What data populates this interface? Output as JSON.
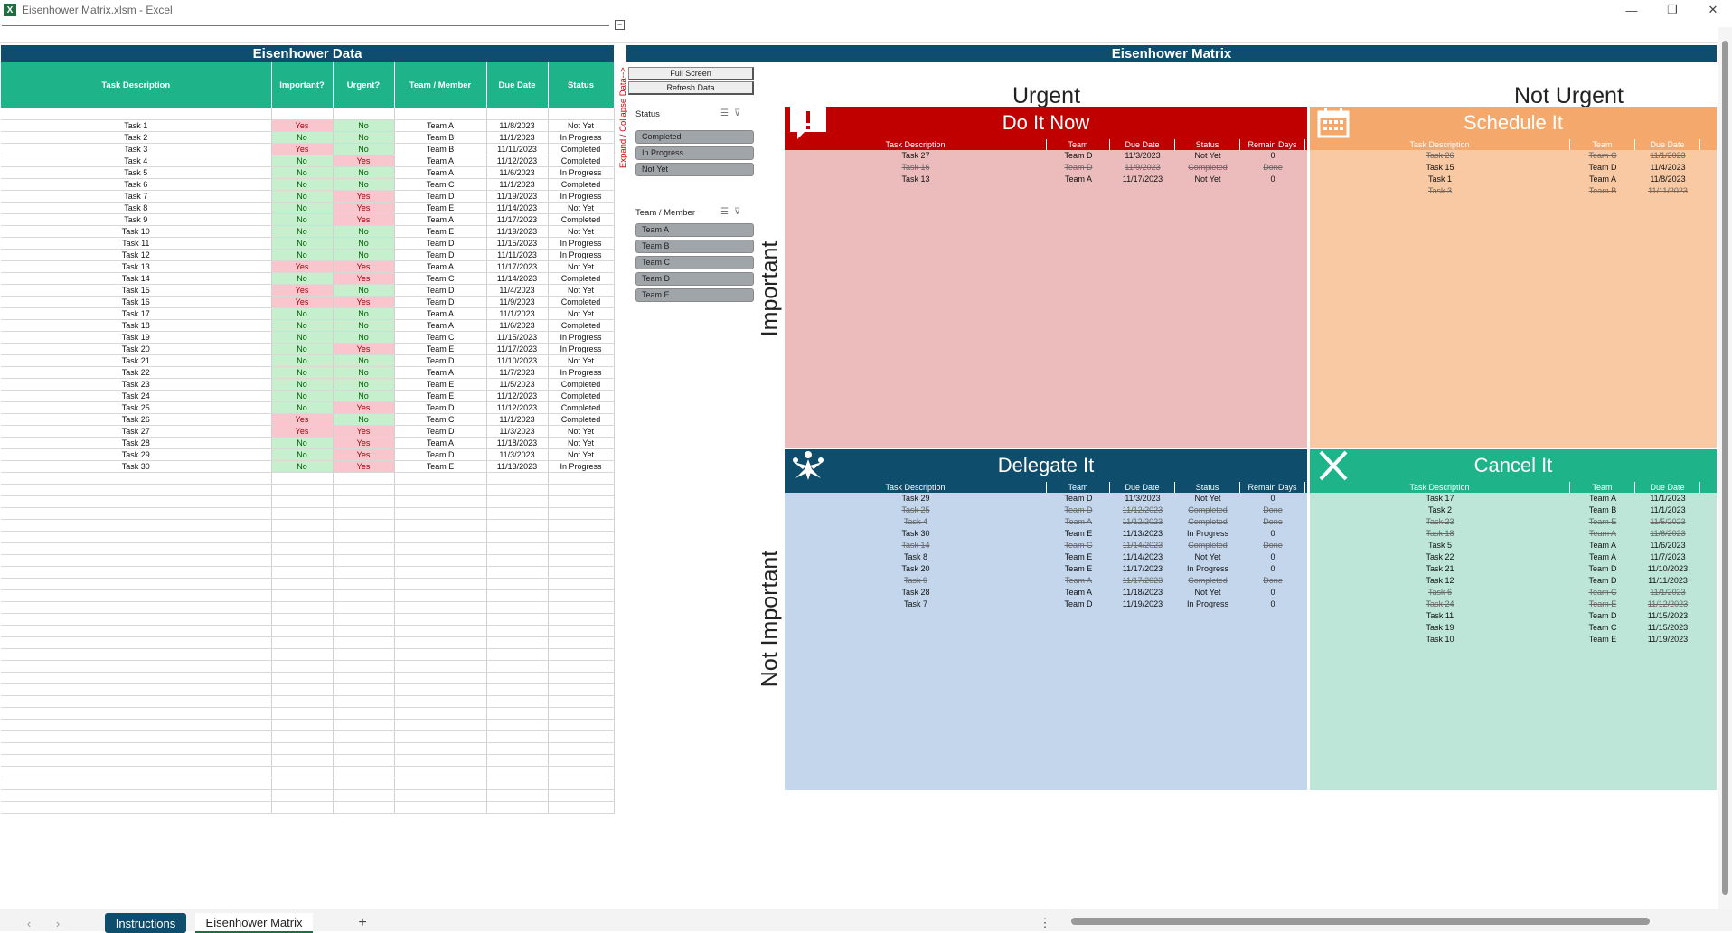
{
  "window": {
    "title": "Eisenhower Matrix.xlsm - Excel",
    "minimize": "—",
    "restore": "❐",
    "close": "✕",
    "rulerbox": "−"
  },
  "data_panel": {
    "title": "Eisenhower Data",
    "columns": [
      "Task Description",
      "Important?",
      "Urgent?",
      "Team / Member",
      "Due Date",
      "Status"
    ],
    "rows": [
      [
        "Task 1",
        "Yes",
        "No",
        "Team A",
        "11/8/2023",
        "Not Yet"
      ],
      [
        "Task 2",
        "No",
        "No",
        "Team B",
        "11/1/2023",
        "In Progress"
      ],
      [
        "Task 3",
        "Yes",
        "No",
        "Team B",
        "11/11/2023",
        "Completed"
      ],
      [
        "Task 4",
        "No",
        "Yes",
        "Team A",
        "11/12/2023",
        "Completed"
      ],
      [
        "Task 5",
        "No",
        "No",
        "Team A",
        "11/6/2023",
        "In Progress"
      ],
      [
        "Task 6",
        "No",
        "No",
        "Team C",
        "11/1/2023",
        "Completed"
      ],
      [
        "Task 7",
        "No",
        "Yes",
        "Team D",
        "11/19/2023",
        "In Progress"
      ],
      [
        "Task 8",
        "No",
        "Yes",
        "Team E",
        "11/14/2023",
        "Not Yet"
      ],
      [
        "Task 9",
        "No",
        "Yes",
        "Team A",
        "11/17/2023",
        "Completed"
      ],
      [
        "Task 10",
        "No",
        "No",
        "Team E",
        "11/19/2023",
        "Not Yet"
      ],
      [
        "Task 11",
        "No",
        "No",
        "Team D",
        "11/15/2023",
        "In Progress"
      ],
      [
        "Task 12",
        "No",
        "No",
        "Team D",
        "11/11/2023",
        "In Progress"
      ],
      [
        "Task 13",
        "Yes",
        "Yes",
        "Team A",
        "11/17/2023",
        "Not Yet"
      ],
      [
        "Task 14",
        "No",
        "Yes",
        "Team C",
        "11/14/2023",
        "Completed"
      ],
      [
        "Task 15",
        "Yes",
        "No",
        "Team D",
        "11/4/2023",
        "Not Yet"
      ],
      [
        "Task 16",
        "Yes",
        "Yes",
        "Team D",
        "11/9/2023",
        "Completed"
      ],
      [
        "Task 17",
        "No",
        "No",
        "Team A",
        "11/1/2023",
        "Not Yet"
      ],
      [
        "Task 18",
        "No",
        "No",
        "Team A",
        "11/6/2023",
        "Completed"
      ],
      [
        "Task 19",
        "No",
        "No",
        "Team C",
        "11/15/2023",
        "In Progress"
      ],
      [
        "Task 20",
        "No",
        "Yes",
        "Team E",
        "11/17/2023",
        "In Progress"
      ],
      [
        "Task 21",
        "No",
        "No",
        "Team D",
        "11/10/2023",
        "Not Yet"
      ],
      [
        "Task 22",
        "No",
        "No",
        "Team A",
        "11/7/2023",
        "In Progress"
      ],
      [
        "Task 23",
        "No",
        "No",
        "Team E",
        "11/5/2023",
        "Completed"
      ],
      [
        "Task 24",
        "No",
        "No",
        "Team E",
        "11/12/2023",
        "Completed"
      ],
      [
        "Task 25",
        "No",
        "Yes",
        "Team D",
        "11/12/2023",
        "Completed"
      ],
      [
        "Task 26",
        "Yes",
        "No",
        "Team C",
        "11/1/2023",
        "Completed"
      ],
      [
        "Task 27",
        "Yes",
        "Yes",
        "Team D",
        "11/3/2023",
        "Not Yet"
      ],
      [
        "Task 28",
        "No",
        "Yes",
        "Team A",
        "11/18/2023",
        "Not Yet"
      ],
      [
        "Task 29",
        "No",
        "Yes",
        "Team D",
        "11/3/2023",
        "Not Yet"
      ],
      [
        "Task 30",
        "No",
        "Yes",
        "Team E",
        "11/13/2023",
        "In Progress"
      ]
    ]
  },
  "expand_label": "Expand / Collapse Data-->",
  "buttons": {
    "full_screen": "Full Screen",
    "refresh": "Refresh Data"
  },
  "slicers": {
    "status": {
      "title": "Status",
      "items": [
        "Completed",
        "In Progress",
        "Not Yet"
      ]
    },
    "team": {
      "title": "Team / Member",
      "items": [
        "Team A",
        "Team B",
        "Team C",
        "Team D",
        "Team E"
      ]
    }
  },
  "matrix": {
    "title": "Eisenhower Matrix",
    "urgent": "Urgent",
    "not_urgent": "Not Urgent",
    "important": "Important",
    "not_important": "Not Important",
    "cols_full": [
      "Task Description",
      "Team",
      "Due Date",
      "Status",
      "Remain Days"
    ],
    "cols_short": [
      "Task Description",
      "Team",
      "Due Date"
    ],
    "do_it_now": {
      "title": "Do It Now",
      "color": "#c00000",
      "bg": "#ecbcbc",
      "icon": "alert-icon",
      "rows": [
        [
          "Task 27",
          "Team D",
          "11/3/2023",
          "Not Yet",
          "0",
          false
        ],
        [
          "Task 16",
          "Team D",
          "11/9/2023",
          "Completed",
          "Done",
          true
        ],
        [
          "Task 13",
          "Team A",
          "11/17/2023",
          "Not Yet",
          "0",
          false
        ]
      ]
    },
    "schedule_it": {
      "title": "Schedule It",
      "color": "#f5a86c",
      "bg": "#f8c9a2",
      "icon": "calendar-icon",
      "rows": [
        [
          "Task 26",
          "Team C",
          "11/1/2023",
          true
        ],
        [
          "Task 15",
          "Team D",
          "11/4/2023",
          false
        ],
        [
          "Task 1",
          "Team A",
          "11/8/2023",
          false
        ],
        [
          "Task 3",
          "Team B",
          "11/11/2023",
          true
        ]
      ]
    },
    "delegate_it": {
      "title": "Delegate It",
      "color": "#0e4d6b",
      "bg": "#c3d6ec",
      "icon": "people-icon",
      "rows": [
        [
          "Task 29",
          "Team D",
          "11/3/2023",
          "Not Yet",
          "0",
          false
        ],
        [
          "Task 25",
          "Team D",
          "11/12/2023",
          "Completed",
          "Done",
          true
        ],
        [
          "Task 4",
          "Team A",
          "11/12/2023",
          "Completed",
          "Done",
          true
        ],
        [
          "Task 30",
          "Team E",
          "11/13/2023",
          "In Progress",
          "0",
          false
        ],
        [
          "Task 14",
          "Team C",
          "11/14/2023",
          "Completed",
          "Done",
          true
        ],
        [
          "Task 8",
          "Team E",
          "11/14/2023",
          "Not Yet",
          "0",
          false
        ],
        [
          "Task 20",
          "Team E",
          "11/17/2023",
          "In Progress",
          "0",
          false
        ],
        [
          "Task 9",
          "Team A",
          "11/17/2023",
          "Completed",
          "Done",
          true
        ],
        [
          "Task 28",
          "Team A",
          "11/18/2023",
          "Not Yet",
          "0",
          false
        ],
        [
          "Task 7",
          "Team D",
          "11/19/2023",
          "In Progress",
          "0",
          false
        ]
      ]
    },
    "cancel_it": {
      "title": "Cancel It",
      "color": "#1fb38a",
      "bg": "#bde6d8",
      "icon": "x-icon",
      "rows": [
        [
          "Task 17",
          "Team A",
          "11/1/2023",
          false
        ],
        [
          "Task 2",
          "Team B",
          "11/1/2023",
          false
        ],
        [
          "Task 23",
          "Team E",
          "11/5/2023",
          true
        ],
        [
          "Task 18",
          "Team A",
          "11/6/2023",
          true
        ],
        [
          "Task 5",
          "Team A",
          "11/6/2023",
          false
        ],
        [
          "Task 22",
          "Team A",
          "11/7/2023",
          false
        ],
        [
          "Task 21",
          "Team D",
          "11/10/2023",
          false
        ],
        [
          "Task 12",
          "Team D",
          "11/11/2023",
          false
        ],
        [
          "Task 6",
          "Team C",
          "11/1/2023",
          true
        ],
        [
          "Task 24",
          "Team E",
          "11/12/2023",
          true
        ],
        [
          "Task 11",
          "Team D",
          "11/15/2023",
          false
        ],
        [
          "Task 19",
          "Team C",
          "11/15/2023",
          false
        ],
        [
          "Task 10",
          "Team E",
          "11/19/2023",
          false
        ]
      ]
    }
  },
  "sheet_tabs": {
    "instructions": "Instructions",
    "matrix": "Eisenhower Matrix",
    "add": "+",
    "prev": "‹",
    "next": "›",
    "more": "⋮"
  }
}
